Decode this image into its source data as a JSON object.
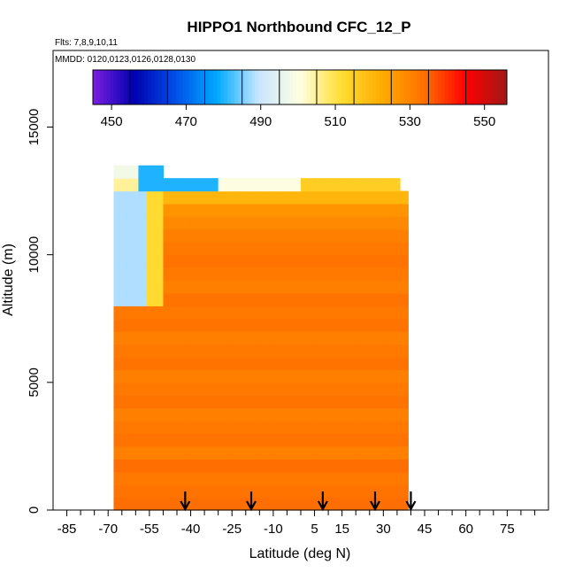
{
  "chart_data": {
    "type": "heatmap",
    "title": "HIPPO1 Northbound CFC_12_P",
    "flights_label": "Flts: 7,8,9,10,11",
    "mmdd_label": "MMDD: 0120,0123,0126,0128,0130",
    "xlabel": "Latitude (deg N)",
    "ylabel": "Altitude (m)",
    "xlim": [
      -90,
      90
    ],
    "ylim": [
      0,
      18000
    ],
    "x_ticks": [
      -85,
      -70,
      -55,
      -40,
      -25,
      -10,
      5,
      15,
      30,
      45,
      60,
      75
    ],
    "x_tick_labels": [
      "-85",
      "-70",
      "-55",
      "-40",
      "-25",
      "-10",
      "5",
      "15",
      "30",
      "45",
      "60",
      "75"
    ],
    "x_minor_ticks": [
      -80,
      -75,
      -65,
      -60,
      -50,
      -45,
      -35,
      -30,
      -20,
      -15,
      -5,
      0,
      10,
      20,
      25,
      35,
      40,
      50,
      55,
      65,
      70,
      80,
      85
    ],
    "y_ticks": [
      0,
      5000,
      10000,
      15000
    ],
    "y_tick_labels": [
      "0",
      "5000",
      "10000",
      "15000"
    ],
    "colorbar": {
      "min": 445,
      "max": 556,
      "ticks": [
        450,
        470,
        490,
        510,
        530,
        550
      ],
      "tick_labels": [
        "450",
        "470",
        "490",
        "510",
        "530",
        "550"
      ],
      "boundaries": [
        455,
        465,
        475,
        485,
        495,
        505,
        515,
        525,
        535,
        545
      ],
      "colors": [
        "#7B1FE0",
        "#0000B0",
        "#0050E8",
        "#00AAFF",
        "#C8E6FF",
        "#FFFFE0",
        "#FFDD33",
        "#FFAA00",
        "#FF7000",
        "#FF0000",
        "#A01818"
      ]
    },
    "profile_arrows_lat": [
      -42,
      -18,
      8,
      27,
      40
    ],
    "latitude_edges": [
      -68,
      -65,
      -62,
      -59,
      -56,
      -53,
      -50,
      -45,
      -40,
      -35,
      -30,
      -25,
      -20,
      -15,
      -10,
      -5,
      0,
      5,
      10,
      15,
      20,
      25,
      30,
      33,
      36,
      39
    ],
    "altitude_edges": [
      0,
      500,
      1000,
      1500,
      2000,
      2500,
      3000,
      3500,
      4000,
      4500,
      5000,
      5500,
      6000,
      6500,
      7000,
      7500,
      8000,
      8500,
      9000,
      9500,
      10000,
      10500,
      11000,
      11500,
      12000,
      12500,
      13000,
      13500,
      14000
    ],
    "lat_top_altitude": [
      13500,
      13500,
      13500,
      13500,
      13500,
      13500,
      13000,
      13000,
      13000,
      13000,
      13000,
      13000,
      13000,
      13000,
      13000,
      13000,
      13000,
      13000,
      13000,
      13000,
      13000,
      13000,
      13000,
      13000,
      12500
    ],
    "altitude_band_values": [
      534,
      533,
      532,
      534,
      531,
      533,
      532,
      531,
      533,
      532,
      531,
      533,
      532,
      531,
      533,
      532,
      533,
      531,
      532,
      533,
      532,
      531,
      529,
      527,
      520,
      505,
      498,
      485
    ],
    "high_latitude_low_values": [
      {
        "lat": [
          -68,
          -56
        ],
        "alt": [
          8000,
          12500
        ],
        "value": 488
      },
      {
        "lat": [
          -56,
          -48
        ],
        "alt": [
          8000,
          12500
        ],
        "value": 512
      },
      {
        "lat": [
          -60,
          -30
        ],
        "alt": [
          12500,
          13500
        ],
        "value": 480
      },
      {
        "lat": [
          -30,
          0
        ],
        "alt": [
          12500,
          13500
        ],
        "value": 500
      },
      {
        "lat": [
          0,
          35
        ],
        "alt": [
          12500,
          13500
        ],
        "value": 515
      }
    ]
  }
}
